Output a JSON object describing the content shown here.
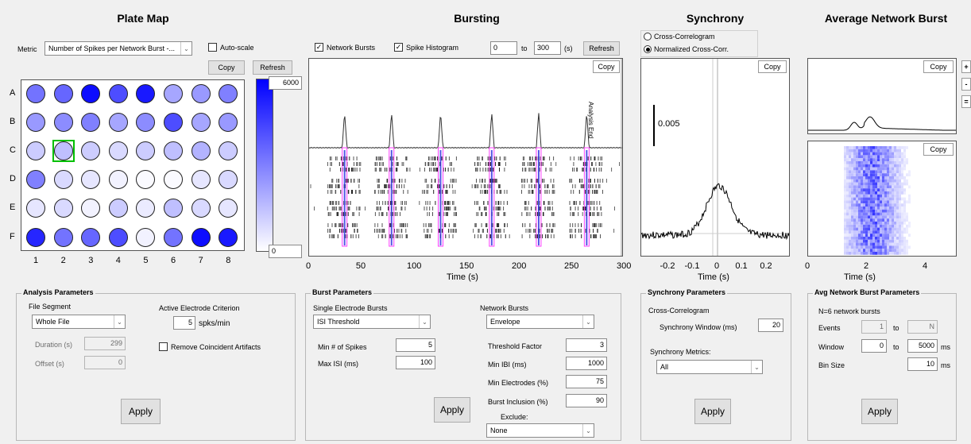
{
  "titles": {
    "plate_map": "Plate Map",
    "bursting": "Bursting",
    "synchrony": "Synchrony",
    "avg_network_burst": "Average Network Burst"
  },
  "plate_map": {
    "metric_label": "Metric",
    "metric_value": "Number of Spikes per Network Burst -...",
    "autoscale_label": "Auto-scale",
    "autoscale_checked": false,
    "copy_label": "Copy",
    "refresh_label": "Refresh",
    "colorbar_max": "6000",
    "colorbar_min": "0",
    "row_labels": [
      "A",
      "B",
      "C",
      "D",
      "E",
      "F"
    ],
    "col_labels": [
      "1",
      "2",
      "3",
      "4",
      "5",
      "6",
      "7",
      "8"
    ],
    "selected_well": "C2",
    "well_intensity": [
      [
        0.55,
        0.6,
        0.95,
        0.7,
        0.9,
        0.35,
        0.4,
        0.5
      ],
      [
        0.4,
        0.45,
        0.5,
        0.35,
        0.45,
        0.7,
        0.35,
        0.4
      ],
      [
        0.2,
        0.25,
        0.2,
        0.15,
        0.2,
        0.25,
        0.3,
        0.2
      ],
      [
        0.5,
        0.15,
        0.1,
        0.05,
        0.02,
        0.02,
        0.1,
        0.15
      ],
      [
        0.1,
        0.15,
        0.05,
        0.2,
        0.08,
        0.25,
        0.15,
        0.1
      ],
      [
        0.85,
        0.55,
        0.6,
        0.7,
        0.05,
        0.55,
        0.95,
        0.9
      ]
    ]
  },
  "bursting": {
    "network_bursts_label": "Network Bursts",
    "network_bursts_checked": true,
    "spike_histogram_label": "Spike Histogram",
    "spike_histogram_checked": true,
    "range_from": "0",
    "range_to_label": "to",
    "range_to": "300",
    "range_unit": "(s)",
    "refresh_label": "Refresh",
    "copy_label": "Copy",
    "zoom_in": "+",
    "zoom_out": "-",
    "zoom_reset": "=",
    "analysis_end_label": "Analysis End",
    "x_ticks": [
      "0",
      "50",
      "100",
      "150",
      "200",
      "250",
      "300"
    ],
    "xlabel": "Time (s)",
    "burst_times": [
      34,
      79,
      126,
      175,
      220,
      266
    ]
  },
  "synchrony": {
    "cross_correlogram_label": "Cross-Correlogram",
    "normalized_label": "Normalized Cross-Corr.",
    "normalized_selected": true,
    "copy_label": "Copy",
    "scale_bar_label": "0.005",
    "x_ticks": [
      "-0.2",
      "-0.1",
      "0",
      "0.1",
      "0.2"
    ],
    "xlabel": "Time (s)"
  },
  "avg_burst": {
    "copy_label": "Copy",
    "copy2_label": "Copy",
    "x_ticks": [
      "0",
      "2",
      "4"
    ],
    "xlabel": "Time (s)",
    "zoom_in": "+",
    "zoom_out": "-",
    "zoom_reset": "="
  },
  "analysis_params": {
    "title": "Analysis Parameters",
    "file_segment_label": "File Segment",
    "file_segment_value": "Whole File",
    "duration_label": "Duration (s)",
    "duration_value": "299",
    "offset_label": "Offset (s)",
    "offset_value": "0",
    "active_electrode_label": "Active Electrode Criterion",
    "active_electrode_value": "5",
    "active_electrode_unit": "spks/min",
    "remove_artifacts_label": "Remove Coincident Artifacts",
    "apply_label": "Apply"
  },
  "burst_params": {
    "title": "Burst Parameters",
    "single_label": "Single Electrode Bursts",
    "single_method": "ISI Threshold",
    "min_spikes_label": "Min # of Spikes",
    "min_spikes_value": "5",
    "max_isi_label": "Max ISI (ms)",
    "max_isi_value": "100",
    "network_label": "Network Bursts",
    "network_method": "Envelope",
    "threshold_factor_label": "Threshold Factor",
    "threshold_factor_value": "3",
    "min_ibi_label": "Min IBI (ms)",
    "min_ibi_value": "1000",
    "min_electrodes_label": "Min Electrodes (%)",
    "min_electrodes_value": "75",
    "burst_inclusion_label": "Burst Inclusion (%)",
    "burst_inclusion_value": "90",
    "exclude_label": "Exclude:",
    "exclude_value": "None",
    "apply_label": "Apply"
  },
  "sync_params": {
    "title": "Synchrony Parameters",
    "cross_corr_label": "Cross-Correlogram",
    "sync_window_label": "Synchrony Window (ms)",
    "sync_window_value": "20",
    "sync_metrics_label": "Synchrony Metrics:",
    "sync_metrics_value": "All",
    "apply_label": "Apply"
  },
  "avg_params": {
    "title": "Avg Network Burst Parameters",
    "n_label": "N=6 network bursts",
    "events_label": "Events",
    "events_from": "1",
    "events_to_label": "to",
    "events_to": "N",
    "window_label": "Window",
    "window_from": "0",
    "window_to_label": "to",
    "window_to": "5000",
    "window_unit": "ms",
    "bin_size_label": "Bin Size",
    "bin_size_value": "10",
    "bin_size_unit": "ms",
    "apply_label": "Apply"
  },
  "colors": {
    "accent": "#0000ff",
    "selection": "#00c000",
    "burst_highlight": "#ff40ff"
  }
}
